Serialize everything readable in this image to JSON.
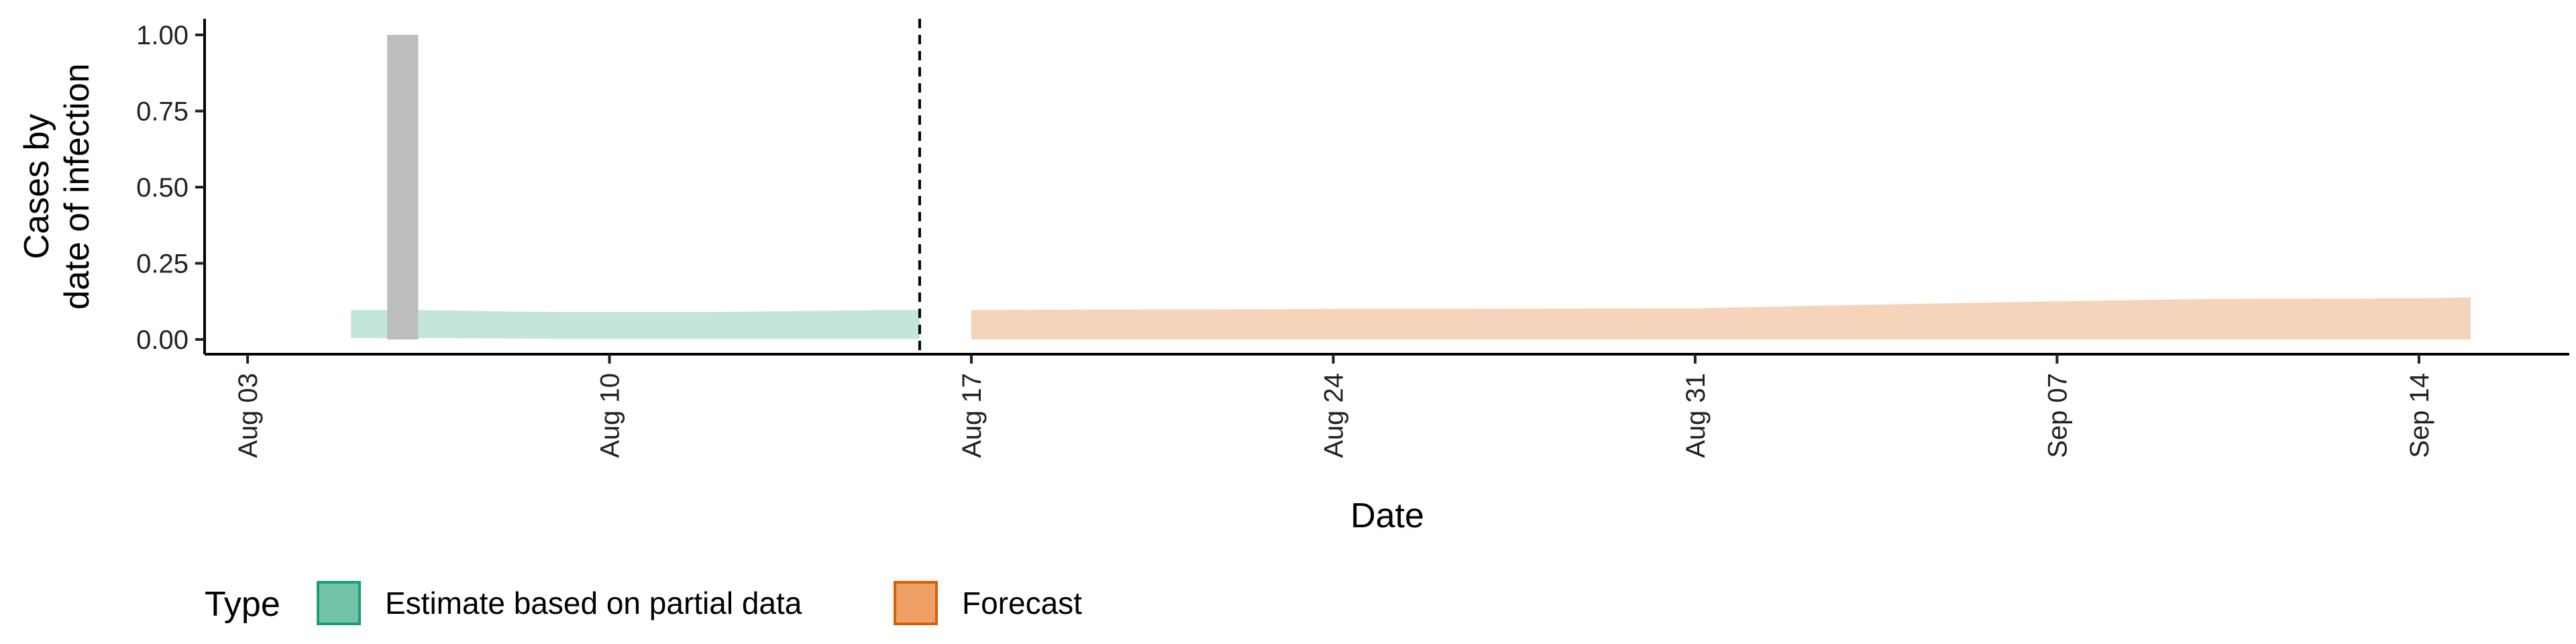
{
  "chart_data": {
    "type": "area",
    "xlabel": "Date",
    "ylabel_lines": [
      "Cases by",
      "date of infection"
    ],
    "ylim": [
      0,
      1
    ],
    "yticks": [
      0,
      0.25,
      0.5,
      0.75,
      1
    ],
    "ytick_labels": [
      "0.00",
      "0.25",
      "0.50",
      "0.75",
      "1.00"
    ],
    "xlim": [
      "2020-08-02",
      "2020-09-16"
    ],
    "xticks": [
      "2020-08-03",
      "2020-08-10",
      "2020-08-17",
      "2020-08-24",
      "2020-08-31",
      "2020-09-07",
      "2020-09-14"
    ],
    "xtick_labels": [
      "Aug 03",
      "Aug 10",
      "Aug 17",
      "Aug 24",
      "Aug 31",
      "Sep 07",
      "Sep 14"
    ],
    "vline": "2020-08-16",
    "bars": [
      {
        "date": "2020-08-06",
        "value": 1.0,
        "color": "#bdbdbd"
      }
    ],
    "ribbons": [
      {
        "name": "Estimate based on partial data",
        "fill": "#c4e6da",
        "dates": [
          "2020-08-05",
          "2020-08-06",
          "2020-08-07",
          "2020-08-08",
          "2020-08-09",
          "2020-08-10",
          "2020-08-11",
          "2020-08-12",
          "2020-08-13",
          "2020-08-14",
          "2020-08-15",
          "2020-08-16"
        ],
        "lower": [
          0.004,
          0.004,
          0.004,
          0.003,
          0.002,
          0.002,
          0.002,
          0.002,
          0.002,
          0.002,
          0.002,
          0.002
        ],
        "upper": [
          0.097,
          0.097,
          0.095,
          0.092,
          0.09,
          0.09,
          0.09,
          0.09,
          0.092,
          0.094,
          0.096,
          0.097
        ]
      },
      {
        "name": "Forecast",
        "fill": "#f6d3bb",
        "dates": [
          "2020-08-17",
          "2020-08-20",
          "2020-08-24",
          "2020-08-28",
          "2020-08-31",
          "2020-09-03",
          "2020-09-07",
          "2020-09-10",
          "2020-09-14",
          "2020-09-15"
        ],
        "lower": [
          0,
          0,
          0,
          0,
          0,
          0,
          0,
          0,
          0,
          0
        ],
        "upper": [
          0.097,
          0.098,
          0.1,
          0.101,
          0.102,
          0.113,
          0.125,
          0.133,
          0.135,
          0.138
        ]
      }
    ],
    "legend": {
      "title": "Type",
      "position": "bottom-left",
      "entries": [
        {
          "label": "Estimate based on partial data",
          "fill": "#72c3a8",
          "stroke": "#1b9e77"
        },
        {
          "label": "Forecast",
          "fill": "#eea066",
          "stroke": "#d95f02"
        }
      ]
    }
  }
}
